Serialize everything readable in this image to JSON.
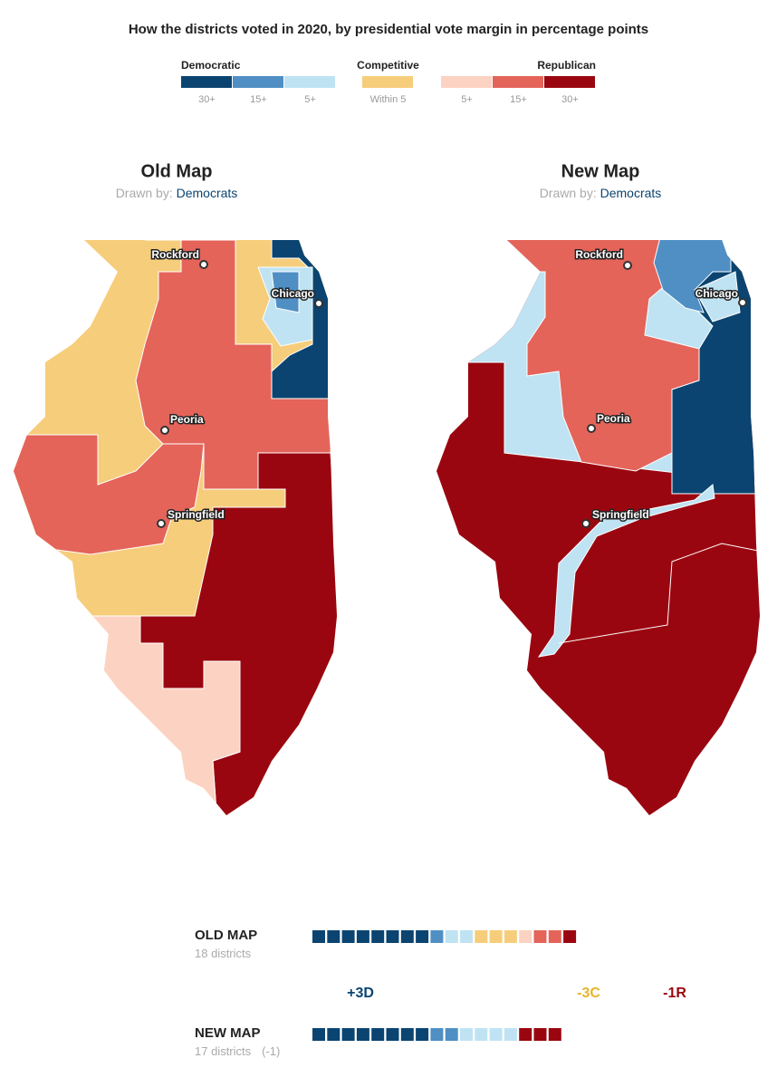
{
  "title": "How the districts voted in 2020, by presidential vote margin in percentage points",
  "legend": {
    "groups": [
      {
        "name": "Democratic",
        "items": [
          {
            "label": "30+",
            "color": "#0b4470"
          },
          {
            "label": "15+",
            "color": "#4f8fc4"
          },
          {
            "label": "5+",
            "color": "#bfe3f2"
          }
        ]
      },
      {
        "name": "Competitive",
        "items": [
          {
            "label": "Within 5",
            "color": "#f6cd7b"
          }
        ]
      },
      {
        "name": "Republican",
        "items": [
          {
            "label": "5+",
            "color": "#fcd2c2"
          },
          {
            "label": "15+",
            "color": "#e4645a"
          },
          {
            "label": "30+",
            "color": "#9a0610"
          }
        ]
      }
    ]
  },
  "maps": [
    {
      "title": "Old Map",
      "drawn_by_label": "Drawn by:",
      "drawn_by": "Democrats",
      "cities": [
        "Rockford",
        "Chicago",
        "Peoria",
        "Springfield"
      ]
    },
    {
      "title": "New Map",
      "drawn_by_label": "Drawn by:",
      "drawn_by": "Democrats",
      "cities": [
        "Rockford",
        "Chicago",
        "Peoria",
        "Springfield"
      ]
    }
  ],
  "summary": {
    "rows": [
      {
        "label": "OLD MAP",
        "subtitle": "18 districts",
        "counts": [
          8,
          1,
          2,
          3,
          1,
          2,
          1
        ]
      },
      {
        "label": "NEW MAP",
        "subtitle": "17 districts",
        "change": "(-1)",
        "counts": [
          8,
          2,
          4,
          0,
          0,
          0,
          3
        ]
      }
    ],
    "changes": [
      {
        "text": "+3D",
        "color": "#0b4470"
      },
      {
        "text": "-3C",
        "color": "#e9b42a"
      },
      {
        "text": "-1R",
        "color": "#9a0610"
      }
    ]
  }
}
